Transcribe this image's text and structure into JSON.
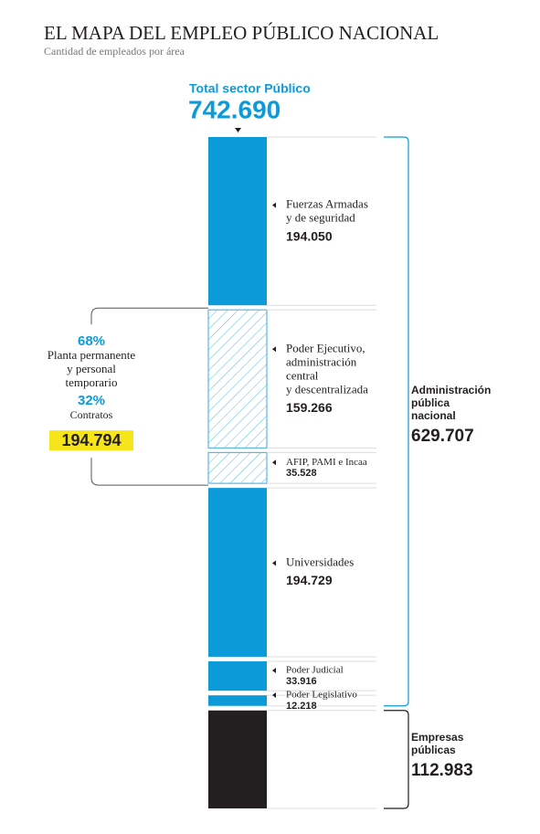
{
  "chart_data": {
    "type": "stacked_bar",
    "title": "EL MAPA DEL EMPLEO PÚBLICO NACIONAL",
    "subtitle": "Cantidad de empleados por área",
    "total": {
      "name": "Total sector Público",
      "value": 742690,
      "value_label": "742.690"
    },
    "groups": [
      {
        "name": [
          "Administración",
          "pública",
          "nacional"
        ],
        "value": 629707,
        "value_label": "629.707",
        "segments": [
          {
            "name": [
              "Fuerzas Armadas",
              "y de seguridad"
            ],
            "value": 194050,
            "value_label": "194.050",
            "color": "#0d9ad9",
            "pattern": "solid"
          },
          {
            "name": [
              "Poder Ejecutivo,",
              "administración",
              "central",
              "y descentralizada"
            ],
            "value": 159266,
            "value_label": "159.266",
            "color": "#5bb8e6",
            "pattern": "hatch"
          },
          {
            "name": [
              "AFIP, PAMI e Incaa"
            ],
            "value": 35528,
            "value_label": "35.528",
            "color": "#5bb8e6",
            "pattern": "hatch"
          },
          {
            "name": [
              "Universidades"
            ],
            "value": 194729,
            "value_label": "194.729",
            "color": "#0d9ad9",
            "pattern": "solid"
          },
          {
            "name": [
              "Poder Judicial"
            ],
            "value": 33916,
            "value_label": "33.916",
            "color": "#0d9ad9",
            "pattern": "solid"
          },
          {
            "name": [
              "Poder Legislativo"
            ],
            "value": 12218,
            "value_label": "12.218",
            "color": "#0d9ad9",
            "pattern": "solid"
          }
        ]
      },
      {
        "name": [
          "Empresas",
          "públicas"
        ],
        "value": 112983,
        "value_label": "112.983",
        "color": "#231f20",
        "segments": []
      }
    ],
    "annotation": {
      "share_1": "68%",
      "text_1": [
        "Planta permanente",
        "y personal",
        "temporario"
      ],
      "share_2": "32%",
      "text_2": [
        "Contratos"
      ],
      "value": 194794,
      "value_label": "194.794"
    }
  }
}
